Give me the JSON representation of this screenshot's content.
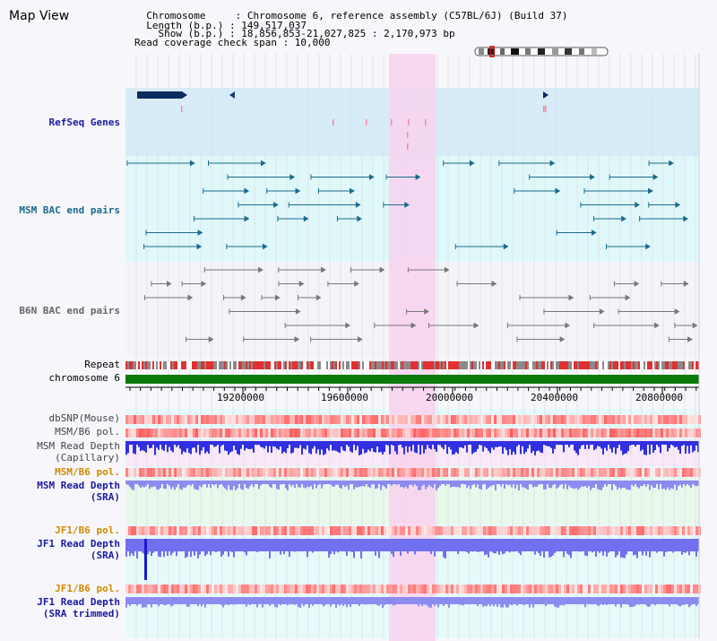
{
  "title": "Map View",
  "header": {
    "chromosome_line": "  Chromosome     : Chromosome 6, reference assembly (C57BL/6J) (Build 37)",
    "length_line": "  Length (b.p.) : 149,517,037",
    "show_line": "    Show (b.p.) : 18,856,853-21,027,825 : 2,170,973 bp",
    "coverage_line": "Read coverage check span : 10,000"
  },
  "tracks": {
    "refseq": "RefSeq Genes",
    "msm_bac": "MSM BAC end pairs",
    "b6n_bac": "B6N BAC end pairs",
    "repeat": "Repeat",
    "chromosome": "chromosome 6",
    "dbsnp": "dbSNP(Mouse)",
    "msm_b6_pol_1": "MSM/B6 pol.",
    "msm_depth_cap_1": "MSM Read Depth",
    "msm_depth_cap_2": "(Capillary)",
    "msm_b6_pol_2": "MSM/B6 pol.",
    "msm_depth_sra_1": "MSM Read Depth",
    "msm_depth_sra_2": "(SRA)",
    "jf1_b6_pol_1": "JF1/B6 pol.",
    "jf1_depth_1": "JF1 Read Depth",
    "jf1_depth_2": "(SRA)",
    "jf1_b6_pol_2": "JF1/B6 pol.",
    "jf1_trim_1": "JF1 Read Depth",
    "jf1_trim_2": "(SRA trimmed)"
  },
  "axis": {
    "ticks": [
      "19200000",
      "19600000",
      "20000000",
      "20400000",
      "20800000"
    ]
  },
  "colors": {
    "highlight": "#f8d2ee",
    "refseq_bg": "#d6ecf8",
    "msm_bac_bg": "#dff8fa",
    "b6n_bg": "#f4f4f8",
    "msm_bac_feature": "#1a6a8a",
    "b6n_feature": "#777777",
    "chromosome_bar": "#0a7a0a",
    "depth_blue": "#2222dd",
    "depth_light": "#8c8cf0",
    "pol_red": "#e03030"
  }
}
